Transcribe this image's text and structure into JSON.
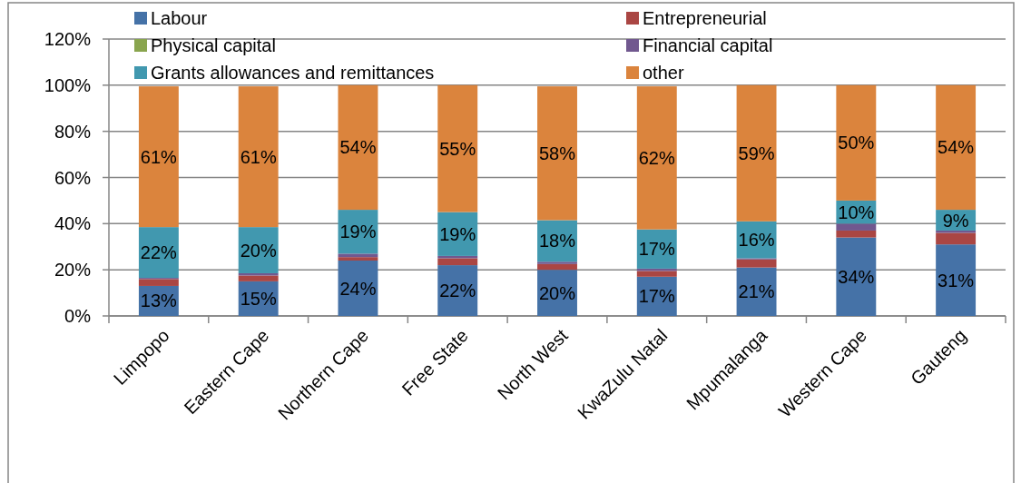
{
  "chart_data": {
    "type": "bar",
    "stacked": true,
    "categories": [
      "Limpopo",
      "Eastern Cape",
      "Northern Cape",
      "Free State",
      "North West",
      "KwaZulu Natal",
      "Mpumalanga",
      "Western Cape",
      "Gauteng"
    ],
    "ylim": [
      0,
      120
    ],
    "yticks": [
      {
        "value": 0,
        "label": "0%"
      },
      {
        "value": 20,
        "label": "20%"
      },
      {
        "value": 40,
        "label": "40%"
      },
      {
        "value": 60,
        "label": "60%"
      },
      {
        "value": 80,
        "label": "80%"
      },
      {
        "value": 100,
        "label": "100%"
      },
      {
        "value": 120,
        "label": "120%"
      }
    ],
    "grid": "y",
    "legend": "top",
    "series": [
      {
        "name": "Labour",
        "color": "#4572a7",
        "values": [
          13,
          15,
          24,
          22,
          20,
          17,
          21,
          34,
          31
        ],
        "value_labels": [
          "13%",
          "15%",
          "24%",
          "22%",
          "20%",
          "17%",
          "21%",
          "34%",
          "31%"
        ]
      },
      {
        "name": "Entrepreneurial",
        "color": "#aa4643",
        "values": [
          3,
          2.5,
          1.5,
          3,
          2.5,
          2.5,
          3.5,
          3,
          5
        ]
      },
      {
        "name": "Physical capital",
        "color": "#89a54e",
        "values": [
          0,
          0,
          0,
          0,
          0,
          0,
          0,
          0,
          0
        ]
      },
      {
        "name": "Financial capital",
        "color": "#71588f",
        "values": [
          0.5,
          1,
          1.5,
          1,
          1,
          1,
          0.5,
          3,
          1
        ]
      },
      {
        "name": "Grants allowances and remittances",
        "color": "#4198af",
        "values": [
          22,
          20,
          19,
          19,
          18,
          17,
          16,
          10,
          9
        ],
        "value_labels": [
          "22%",
          "20%",
          "19%",
          "19%",
          "18%",
          "17%",
          "16%",
          "10%",
          "9%"
        ]
      },
      {
        "name": "other",
        "color": "#db843d",
        "values": [
          61,
          61,
          54,
          55,
          58,
          62,
          59,
          50,
          54
        ],
        "value_labels": [
          "61%",
          "61%",
          "54%",
          "55%",
          "58%",
          "62%",
          "59%",
          "50%",
          "54%"
        ]
      }
    ]
  }
}
